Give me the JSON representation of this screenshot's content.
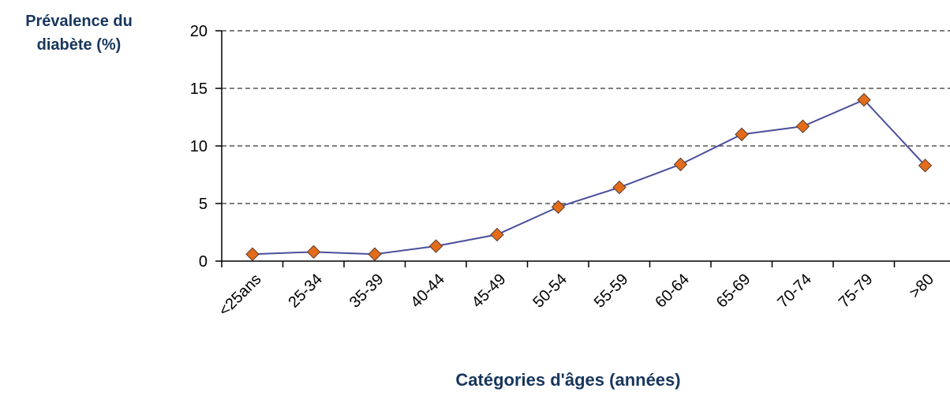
{
  "chart_data": {
    "type": "line",
    "title": "",
    "ylabel_lines": [
      "Prévalence du",
      "diabète (%)"
    ],
    "xlabel": "Catégories d'âges (années)",
    "categories": [
      "<25ans",
      "25-34",
      "35-39",
      "40-44",
      "45-49",
      "50-54",
      "55-59",
      "60-64",
      "65-69",
      "70-74",
      "75-79",
      ">80"
    ],
    "series": [
      {
        "values": [
          0.6,
          0.8,
          0.6,
          1.3,
          2.3,
          4.7,
          6.4,
          8.4,
          11.0,
          11.7,
          14.0,
          8.3
        ]
      }
    ],
    "ylim": [
      0,
      20
    ],
    "yticks": [
      0,
      5,
      10,
      15,
      20
    ],
    "ytick_labels": [
      "0",
      "5",
      "10",
      "15",
      "20"
    ],
    "grid": "horizontal dashed",
    "legend": "none",
    "colors": {
      "line": "#4b4f9c",
      "marker_fill": "#e36c1a",
      "marker_stroke": "#5a3a2a",
      "axis": "#000000",
      "grid": "#555555",
      "label_text": "#17365d"
    }
  }
}
